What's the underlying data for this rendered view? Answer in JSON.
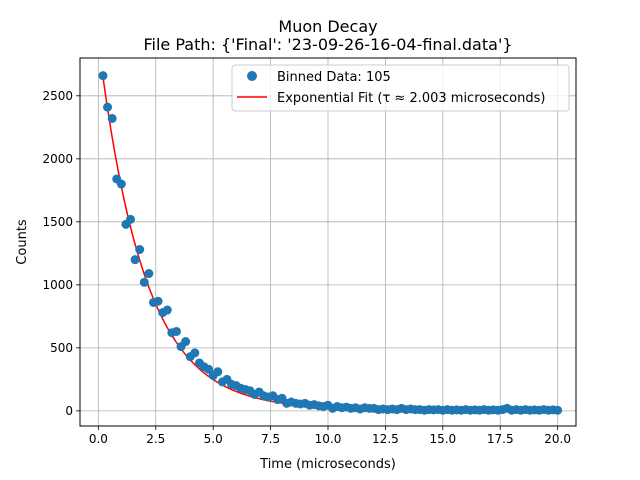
{
  "chart_data": {
    "type": "scatter",
    "title": "Muon Decay",
    "subtitle": "File Path: {'Final': '23-09-26-16-04-final.data'}",
    "xlabel": "Time (microseconds)",
    "ylabel": "Counts",
    "xlim": [
      -0.8,
      20.8
    ],
    "ylim": [
      -120,
      2800
    ],
    "xticks": [
      0.0,
      2.5,
      5.0,
      7.5,
      10.0,
      12.5,
      15.0,
      17.5,
      20.0
    ],
    "xtick_labels": [
      "0.0",
      "2.5",
      "5.0",
      "7.5",
      "10.0",
      "12.5",
      "15.0",
      "17.5",
      "20.0"
    ],
    "yticks": [
      0,
      500,
      1000,
      1500,
      2000,
      2500
    ],
    "ytick_labels": [
      "0",
      "500",
      "1000",
      "1500",
      "2000",
      "2500"
    ],
    "grid": true,
    "legend_position": "top-right",
    "series": [
      {
        "name": "Binned Data: 105",
        "kind": "scatter",
        "color": "#1f77b4",
        "x": [
          0.2,
          0.4,
          0.6,
          0.8,
          1.0,
          1.2,
          1.4,
          1.6,
          1.8,
          2.0,
          2.2,
          2.4,
          2.6,
          2.8,
          3.0,
          3.2,
          3.4,
          3.6,
          3.8,
          4.0,
          4.2,
          4.4,
          4.6,
          4.8,
          5.0,
          5.2,
          5.4,
          5.6,
          5.8,
          6.0,
          6.2,
          6.4,
          6.6,
          6.8,
          7.0,
          7.2,
          7.4,
          7.6,
          7.8,
          8.0,
          8.2,
          8.4,
          8.6,
          8.8,
          9.0,
          9.2,
          9.4,
          9.6,
          9.8,
          10.0,
          10.2,
          10.4,
          10.6,
          10.8,
          11.0,
          11.2,
          11.4,
          11.6,
          11.8,
          12.0,
          12.2,
          12.4,
          12.6,
          12.8,
          13.0,
          13.2,
          13.4,
          13.6,
          13.8,
          14.0,
          14.2,
          14.4,
          14.6,
          14.8,
          15.0,
          15.2,
          15.4,
          15.6,
          15.8,
          16.0,
          16.2,
          16.4,
          16.6,
          16.8,
          17.0,
          17.2,
          17.4,
          17.6,
          17.8,
          18.0,
          18.2,
          18.4,
          18.6,
          18.8,
          19.0,
          19.2,
          19.4,
          19.6,
          19.8,
          20.0
        ],
        "y": [
          2660,
          2410,
          2320,
          1840,
          1800,
          1480,
          1520,
          1200,
          1280,
          1020,
          1090,
          860,
          870,
          780,
          800,
          620,
          630,
          510,
          550,
          430,
          460,
          380,
          350,
          330,
          280,
          310,
          230,
          250,
          210,
          200,
          180,
          170,
          160,
          130,
          150,
          120,
          110,
          120,
          90,
          100,
          60,
          70,
          60,
          55,
          60,
          45,
          50,
          40,
          35,
          45,
          20,
          35,
          25,
          30,
          20,
          25,
          15,
          25,
          20,
          20,
          10,
          15,
          10,
          15,
          10,
          20,
          10,
          15,
          10,
          10,
          5,
          10,
          8,
          10,
          5,
          10,
          5,
          8,
          5,
          10,
          5,
          8,
          5,
          10,
          5,
          8,
          5,
          10,
          20,
          5,
          10,
          5,
          10,
          5,
          8,
          5,
          10,
          5,
          8,
          5
        ]
      },
      {
        "name": "Exponential Fit (τ ≈ 2.003 microseconds)",
        "kind": "line",
        "color": "#ff0000",
        "function": "exponential",
        "tau": 2.003,
        "A": 2920,
        "C": 8,
        "x_start": 0.2,
        "x_end": 20.0
      }
    ]
  }
}
